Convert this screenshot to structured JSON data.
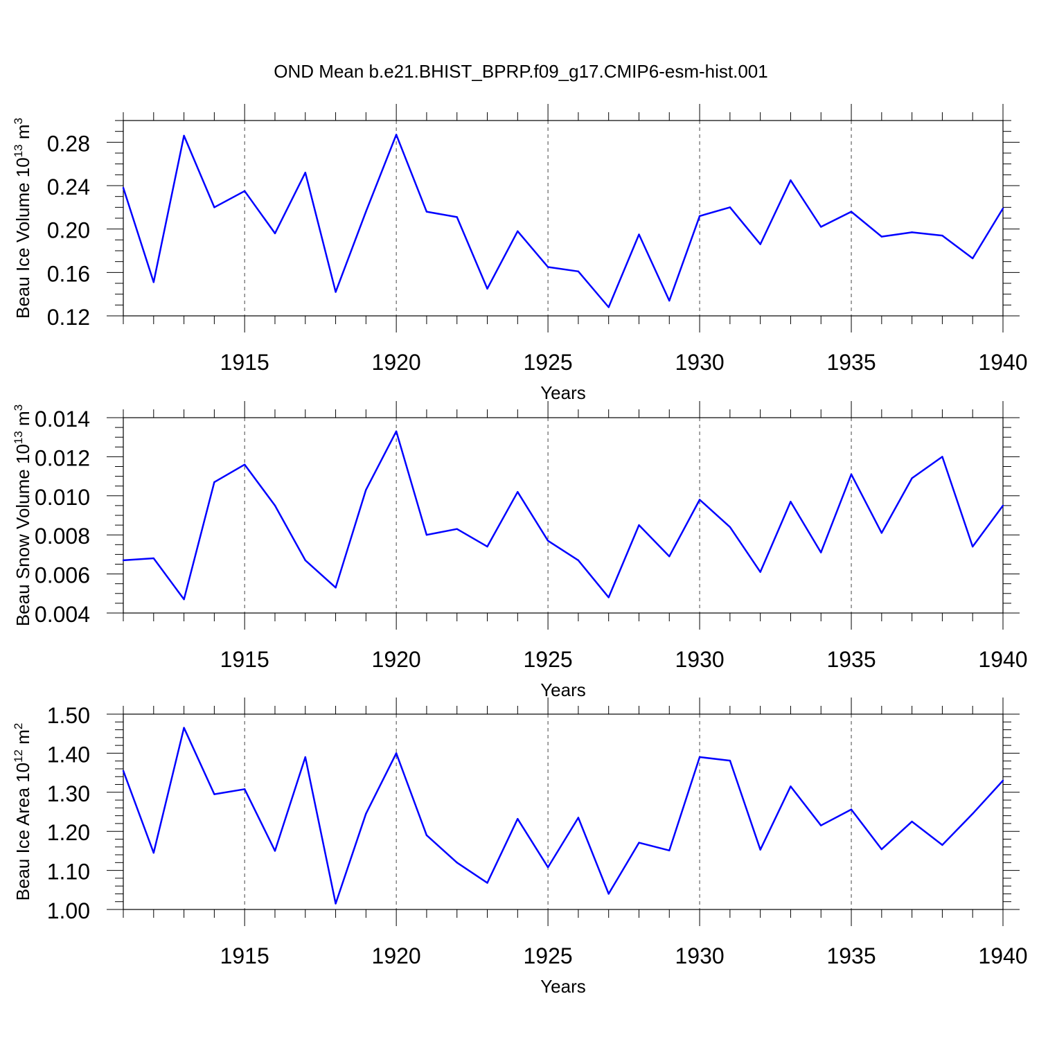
{
  "title": "OND Mean b.e21.BHIST_BPRP.f09_g17.CMIP6-esm-hist.001",
  "chart_data": [
    {
      "type": "line",
      "ylabel": "Beau Ice Volume 10",
      "ylabel_exp": "13",
      "ylabel_unit": " m",
      "ylabel_unit_exp": "3",
      "xlabel": "Years",
      "xlim": [
        1911,
        1940
      ],
      "ylim": [
        0.12,
        0.3
      ],
      "yticks": [
        0.12,
        0.16,
        0.2,
        0.24,
        0.28
      ],
      "ytick_labels": [
        "0.12",
        "0.16",
        "0.20",
        "0.24",
        "0.28"
      ],
      "yminor_step": 0.01,
      "xticks": [
        1915,
        1920,
        1925,
        1930,
        1935,
        1940
      ],
      "xtick_labels": [
        "1915",
        "1920",
        "1925",
        "1930",
        "1935",
        "1940"
      ],
      "line_color": "#0000ff",
      "x": [
        1911,
        1912,
        1913,
        1914,
        1915,
        1916,
        1917,
        1918,
        1919,
        1920,
        1921,
        1922,
        1923,
        1924,
        1925,
        1926,
        1927,
        1928,
        1929,
        1930,
        1931,
        1932,
        1933,
        1934,
        1935,
        1936,
        1937,
        1938,
        1939,
        1940
      ],
      "values": [
        0.238,
        0.151,
        0.286,
        0.22,
        0.235,
        0.196,
        0.252,
        0.142,
        0.216,
        0.287,
        0.216,
        0.211,
        0.145,
        0.198,
        0.165,
        0.161,
        0.128,
        0.195,
        0.134,
        0.212,
        0.22,
        0.186,
        0.245,
        0.202,
        0.216,
        0.193,
        0.197,
        0.194,
        0.173,
        0.219
      ]
    },
    {
      "type": "line",
      "ylabel": "Beau Snow Volume 10",
      "ylabel_exp": "13",
      "ylabel_unit": " m",
      "ylabel_unit_exp": "3",
      "xlabel": "Years",
      "xlim": [
        1911,
        1940
      ],
      "ylim": [
        0.004,
        0.014
      ],
      "yticks": [
        0.004,
        0.006,
        0.008,
        0.01,
        0.012,
        0.014
      ],
      "ytick_labels": [
        "0.004",
        "0.006",
        "0.008",
        "0.010",
        "0.012",
        "0.014"
      ],
      "yminor_step": 0.0005,
      "xticks": [
        1915,
        1920,
        1925,
        1930,
        1935,
        1940
      ],
      "xtick_labels": [
        "1915",
        "1920",
        "1925",
        "1930",
        "1935",
        "1940"
      ],
      "line_color": "#0000ff",
      "x": [
        1911,
        1912,
        1913,
        1914,
        1915,
        1916,
        1917,
        1918,
        1919,
        1920,
        1921,
        1922,
        1923,
        1924,
        1925,
        1926,
        1927,
        1928,
        1929,
        1930,
        1931,
        1932,
        1933,
        1934,
        1935,
        1936,
        1937,
        1938,
        1939,
        1940
      ],
      "values": [
        0.0067,
        0.0068,
        0.0047,
        0.0107,
        0.0116,
        0.0095,
        0.0067,
        0.0053,
        0.0103,
        0.0133,
        0.008,
        0.0083,
        0.0074,
        0.0102,
        0.0077,
        0.0067,
        0.0048,
        0.0085,
        0.0069,
        0.0098,
        0.0084,
        0.0061,
        0.0097,
        0.0071,
        0.0111,
        0.0081,
        0.0109,
        0.012,
        0.0074,
        0.0095
      ]
    },
    {
      "type": "line",
      "ylabel": "Beau Ice Area 10",
      "ylabel_exp": "12",
      "ylabel_unit": " m",
      "ylabel_unit_exp": "2",
      "xlabel": "Years",
      "xlim": [
        1911,
        1940
      ],
      "ylim": [
        1.0,
        1.5
      ],
      "yticks": [
        1.0,
        1.1,
        1.2,
        1.3,
        1.4,
        1.5
      ],
      "ytick_labels": [
        "1.00",
        "1.10",
        "1.20",
        "1.30",
        "1.40",
        "1.50"
      ],
      "yminor_step": 0.02,
      "xticks": [
        1915,
        1920,
        1925,
        1930,
        1935,
        1940
      ],
      "xtick_labels": [
        "1915",
        "1920",
        "1925",
        "1930",
        "1935",
        "1940"
      ],
      "line_color": "#0000ff",
      "x": [
        1911,
        1912,
        1913,
        1914,
        1915,
        1916,
        1917,
        1918,
        1919,
        1920,
        1921,
        1922,
        1923,
        1924,
        1925,
        1926,
        1927,
        1928,
        1929,
        1930,
        1931,
        1932,
        1933,
        1934,
        1935,
        1936,
        1937,
        1938,
        1939,
        1940
      ],
      "values": [
        1.355,
        1.145,
        1.465,
        1.295,
        1.308,
        1.15,
        1.39,
        1.015,
        1.245,
        1.4,
        1.19,
        1.12,
        1.068,
        1.232,
        1.108,
        1.235,
        1.04,
        1.171,
        1.151,
        1.39,
        1.381,
        1.153,
        1.315,
        1.215,
        1.256,
        1.154,
        1.225,
        1.165,
        1.245,
        1.33
      ]
    }
  ]
}
